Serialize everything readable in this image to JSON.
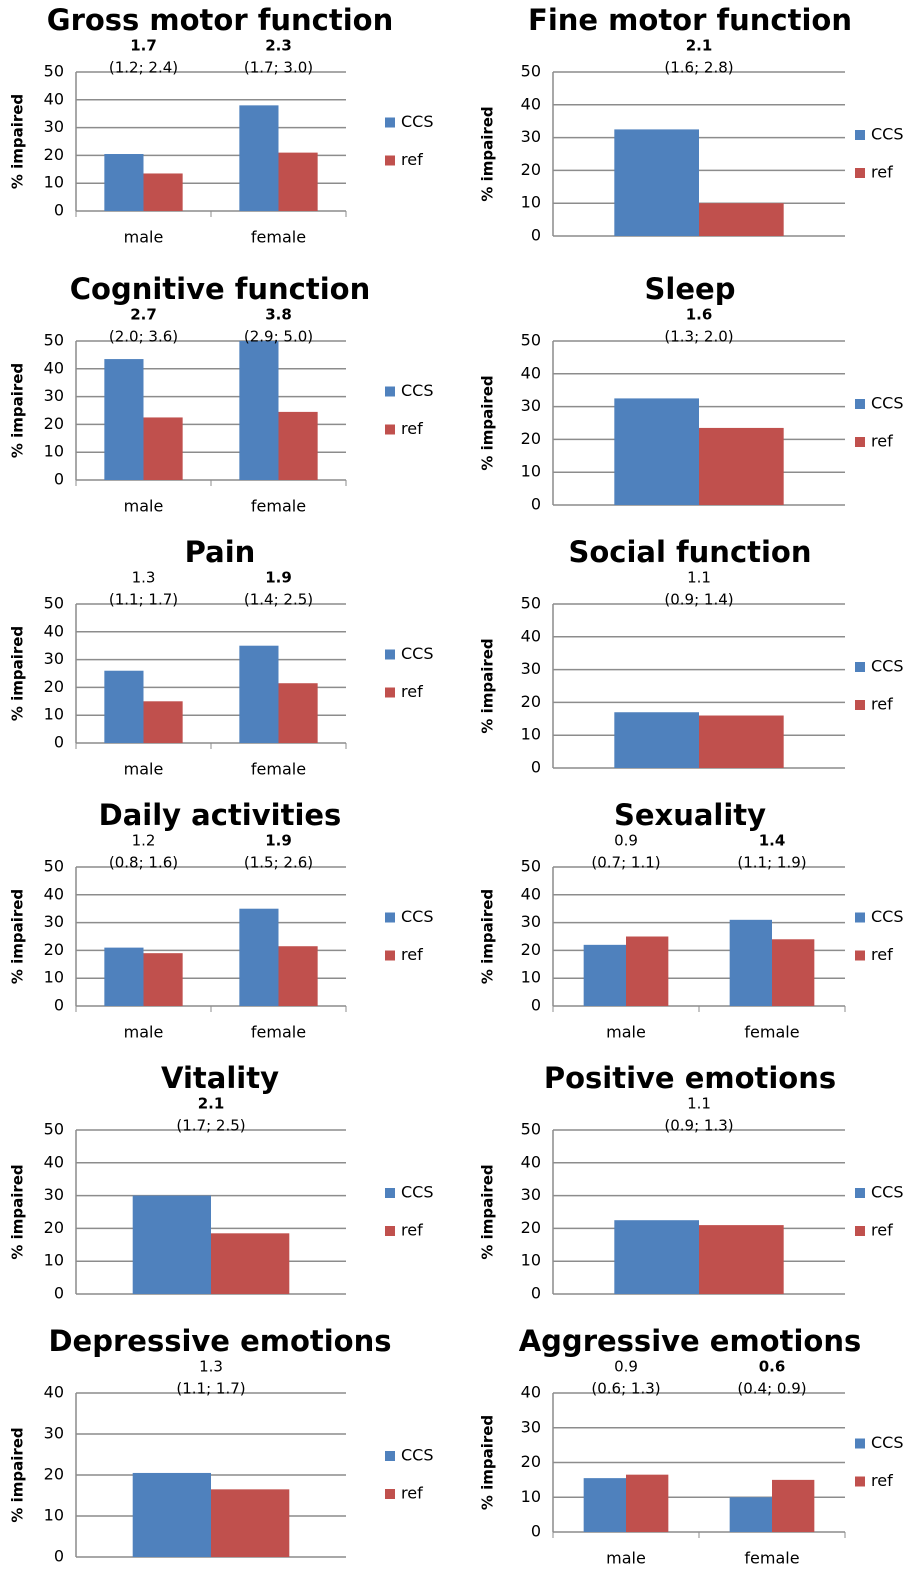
{
  "chart_data": [
    {
      "type": "bar",
      "title": "Gross motor function",
      "y_label": "% impaired",
      "categories": [
        "male",
        "female"
      ],
      "series": [
        {
          "name": "CCS",
          "color": "#4f81bd",
          "values": [
            20.5,
            38
          ]
        },
        {
          "name": "ref",
          "color": "#c0504d",
          "values": [
            13.5,
            21
          ]
        }
      ],
      "annotations": [
        {
          "ratio": "1.7",
          "ci": "(1.2; 2.4)",
          "bold": true
        },
        {
          "ratio": "2.3",
          "ci": "(1.7; 3.0)",
          "bold": true
        }
      ],
      "ylim": [
        0,
        50
      ],
      "yticks": [
        0,
        10,
        20,
        30,
        40,
        50
      ],
      "grid": true
    },
    {
      "type": "bar",
      "title": "Fine motor function",
      "y_label": "% impaired",
      "categories": [
        null
      ],
      "series": [
        {
          "name": "CCS",
          "color": "#4f81bd",
          "values": [
            32.5
          ]
        },
        {
          "name": "ref",
          "color": "#c0504d",
          "values": [
            10
          ]
        }
      ],
      "annotations": [
        {
          "ratio": "2.1",
          "ci": "(1.6; 2.8)",
          "bold": true
        }
      ],
      "ylim": [
        0,
        50
      ],
      "yticks": [
        0,
        10,
        20,
        30,
        40,
        50
      ],
      "grid": true
    },
    {
      "type": "bar",
      "title": "Cognitive function",
      "y_label": "% impaired",
      "categories": [
        "male",
        "female"
      ],
      "series": [
        {
          "name": "CCS",
          "color": "#4f81bd",
          "values": [
            43.5,
            50
          ]
        },
        {
          "name": "ref",
          "color": "#c0504d",
          "values": [
            22.5,
            24.5
          ]
        }
      ],
      "annotations": [
        {
          "ratio": "2.7",
          "ci": "(2.0; 3.6)",
          "bold": true
        },
        {
          "ratio": "3.8",
          "ci": "(2.9; 5.0)",
          "bold": true
        }
      ],
      "ylim": [
        0,
        50
      ],
      "yticks": [
        0,
        10,
        20,
        30,
        40,
        50
      ],
      "grid": true
    },
    {
      "type": "bar",
      "title": "Sleep",
      "y_label": "% impaired",
      "categories": [
        null
      ],
      "series": [
        {
          "name": "CCS",
          "color": "#4f81bd",
          "values": [
            32.5
          ]
        },
        {
          "name": "ref",
          "color": "#c0504d",
          "values": [
            23.5
          ]
        }
      ],
      "annotations": [
        {
          "ratio": "1.6",
          "ci": "(1.3; 2.0)",
          "bold": true
        }
      ],
      "ylim": [
        0,
        50
      ],
      "yticks": [
        0,
        10,
        20,
        30,
        40,
        50
      ],
      "grid": true
    },
    {
      "type": "bar",
      "title": "Pain",
      "y_label": "% impaired",
      "categories": [
        "male",
        "female"
      ],
      "series": [
        {
          "name": "CCS",
          "color": "#4f81bd",
          "values": [
            26,
            35
          ]
        },
        {
          "name": "ref",
          "color": "#c0504d",
          "values": [
            15,
            21.5
          ]
        }
      ],
      "annotations": [
        {
          "ratio": "1.3",
          "ci": "(1.1; 1.7)",
          "bold": false
        },
        {
          "ratio": "1.9",
          "ci": "(1.4; 2.5)",
          "bold": true
        }
      ],
      "ylim": [
        0,
        50
      ],
      "yticks": [
        0,
        10,
        20,
        30,
        40,
        50
      ],
      "grid": true
    },
    {
      "type": "bar",
      "title": "Social function",
      "y_label": "% impaired",
      "categories": [
        null
      ],
      "series": [
        {
          "name": "CCS",
          "color": "#4f81bd",
          "values": [
            17
          ]
        },
        {
          "name": "ref",
          "color": "#c0504d",
          "values": [
            16
          ]
        }
      ],
      "annotations": [
        {
          "ratio": "1.1",
          "ci": "(0.9; 1.4)",
          "bold": false
        }
      ],
      "ylim": [
        0,
        50
      ],
      "yticks": [
        0,
        10,
        20,
        30,
        40,
        50
      ],
      "grid": true
    },
    {
      "type": "bar",
      "title": "Daily activities",
      "y_label": "% impaired",
      "categories": [
        "male",
        "female"
      ],
      "series": [
        {
          "name": "CCS",
          "color": "#4f81bd",
          "values": [
            21,
            35
          ]
        },
        {
          "name": "ref",
          "color": "#c0504d",
          "values": [
            19,
            21.5
          ]
        }
      ],
      "annotations": [
        {
          "ratio": "1.2",
          "ci": "(0.8; 1.6)",
          "bold": false
        },
        {
          "ratio": "1.9",
          "ci": "(1.5; 2.6)",
          "bold": true
        }
      ],
      "ylim": [
        0,
        50
      ],
      "yticks": [
        0,
        10,
        20,
        30,
        40,
        50
      ],
      "grid": true
    },
    {
      "type": "bar",
      "title": "Sexuality",
      "y_label": "% impaired",
      "categories": [
        "male",
        "female"
      ],
      "series": [
        {
          "name": "CCS",
          "color": "#4f81bd",
          "values": [
            22,
            31
          ]
        },
        {
          "name": "ref",
          "color": "#c0504d",
          "values": [
            25,
            24
          ]
        }
      ],
      "annotations": [
        {
          "ratio": "0.9",
          "ci": "(0.7; 1.1)",
          "bold": false
        },
        {
          "ratio": "1.4",
          "ci": "(1.1; 1.9)",
          "bold": true
        }
      ],
      "ylim": [
        0,
        50
      ],
      "yticks": [
        0,
        10,
        20,
        30,
        40,
        50
      ],
      "grid": true
    },
    {
      "type": "bar",
      "title": "Vitality",
      "y_label": "% impaired",
      "categories": [
        null
      ],
      "series": [
        {
          "name": "CCS",
          "color": "#4f81bd",
          "values": [
            30
          ]
        },
        {
          "name": "ref",
          "color": "#c0504d",
          "values": [
            18.5
          ]
        }
      ],
      "annotations": [
        {
          "ratio": "2.1",
          "ci": "(1.7; 2.5)",
          "bold": true
        }
      ],
      "ylim": [
        0,
        50
      ],
      "yticks": [
        0,
        10,
        20,
        30,
        40,
        50
      ],
      "grid": true
    },
    {
      "type": "bar",
      "title": "Positive emotions",
      "y_label": "% impaired",
      "categories": [
        null
      ],
      "series": [
        {
          "name": "CCS",
          "color": "#4f81bd",
          "values": [
            22.5
          ]
        },
        {
          "name": "ref",
          "color": "#c0504d",
          "values": [
            21
          ]
        }
      ],
      "annotations": [
        {
          "ratio": "1.1",
          "ci": "(0.9; 1.3)",
          "bold": false
        }
      ],
      "ylim": [
        0,
        50
      ],
      "yticks": [
        0,
        10,
        20,
        30,
        40,
        50
      ],
      "grid": true
    },
    {
      "type": "bar",
      "title": "Depressive emotions",
      "y_label": "% impaired",
      "categories": [
        null
      ],
      "series": [
        {
          "name": "CCS",
          "color": "#4f81bd",
          "values": [
            20.5
          ]
        },
        {
          "name": "ref",
          "color": "#c0504d",
          "values": [
            16.5
          ]
        }
      ],
      "annotations": [
        {
          "ratio": "1.3",
          "ci": "(1.1; 1.7)",
          "bold": false
        }
      ],
      "ylim": [
        0,
        40
      ],
      "yticks": [
        0,
        10,
        20,
        30,
        40
      ],
      "grid": true
    },
    {
      "type": "bar",
      "title": "Aggressive emotions",
      "y_label": "% impaired",
      "categories": [
        "male",
        "female"
      ],
      "series": [
        {
          "name": "CCS",
          "color": "#4f81bd",
          "values": [
            15.5,
            10
          ]
        },
        {
          "name": "ref",
          "color": "#c0504d",
          "values": [
            16.5,
            15
          ]
        }
      ],
      "annotations": [
        {
          "ratio": "0.9",
          "ci": "(0.6; 1.3)",
          "bold": false
        },
        {
          "ratio": "0.6",
          "ci": "(0.4; 0.9)",
          "bold": true
        }
      ],
      "ylim": [
        0,
        40
      ],
      "yticks": [
        0,
        10,
        20,
        30,
        40
      ],
      "grid": true
    }
  ]
}
